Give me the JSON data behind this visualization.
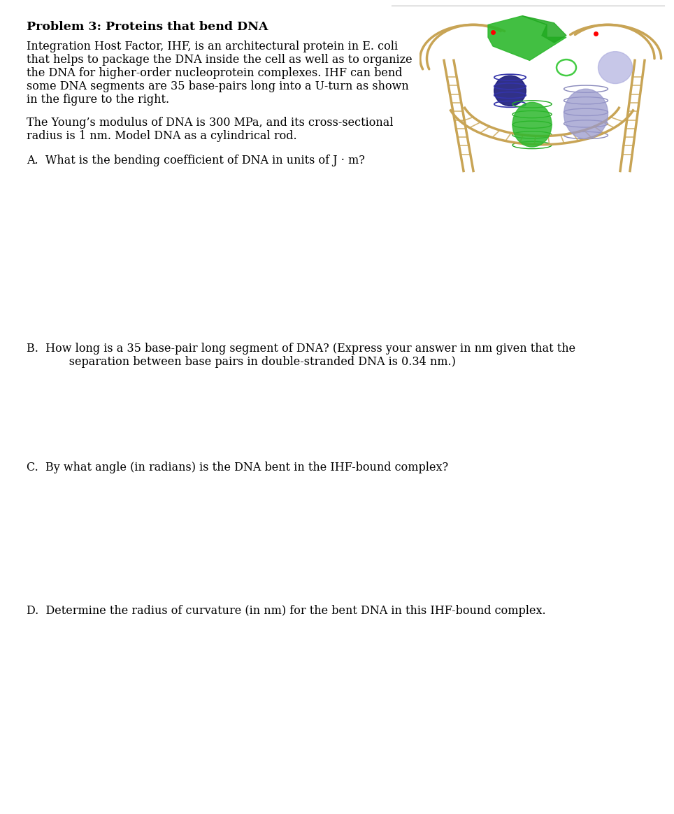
{
  "title": "Problem 3: Proteins that bend DNA",
  "para1_lines": [
    "Integration Host Factor, IHF, is an architectural protein in E. coli",
    "that helps to package the DNA inside the cell as well as to organize",
    "the DNA for higher-order nucleoprotein complexes. IHF can bend",
    "some DNA segments are 35 base-pairs long into a U-turn as shown",
    "in the figure to the right."
  ],
  "para2_lines": [
    "The Young’s modulus of DNA is 300 MPa, and its cross-sectional",
    "radius is 1 nm. Model DNA as a cylindrical rod."
  ],
  "qa": "A.  What is the bending coefficient of DNA in units of J · m?",
  "qb_line1": "B.  How long is a 35 base-pair long segment of DNA? (Express your answer in nm given that the",
  "qb_line2": "      separation between base pairs in double-stranded DNA is 0.34 nm.)",
  "qc": "C.  By what angle (in radians) is the DNA bent in the IHF-bound complex?",
  "qd": "D.  Determine the radius of curvature (in nm) for the bent DNA in this IHF-bound complex.",
  "bg_color": "#ffffff",
  "text_color": "#000000",
  "separator_color": "#bbbbbb"
}
